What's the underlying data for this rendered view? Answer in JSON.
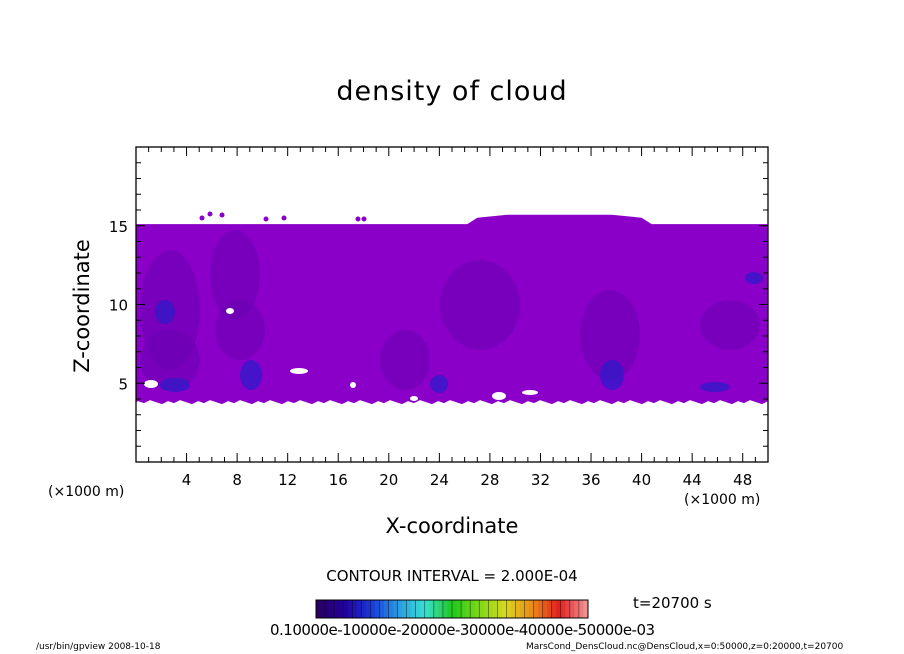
{
  "chart_data": {
    "type": "heatmap",
    "title": "density of cloud",
    "xlabel": "X-coordinate",
    "ylabel": "Z-coordinate",
    "x_unit": "(×1000 m)",
    "xlim": [
      0,
      50
    ],
    "ylim": [
      0,
      20
    ],
    "x_ticks": [
      "4",
      "8",
      "12",
      "16",
      "20",
      "24",
      "28",
      "32",
      "36",
      "40",
      "44",
      "48"
    ],
    "y_ticks": [
      "5",
      "10",
      "15"
    ],
    "field": {
      "x_range": [
        0,
        50
      ],
      "z_bottom": 3.8,
      "z_top": 15.1,
      "z_top_bump": {
        "x_range": [
          27,
          40
        ],
        "z": 15.7
      },
      "dominant_color": "#8b00c9",
      "low_density_color": "#6a00b0",
      "high_density_color": "#2d1ac8"
    },
    "contour_interval": "CONTOUR INTERVAL = 2.000E-04",
    "time_label": "t=20700 s",
    "colorbar": {
      "tick_labels_text": "0.10000e-10000e-20000e-30000e-40000e-50000e-03",
      "colors": [
        "#2a0060",
        "#22009e",
        "#1a3ad8",
        "#2a9be0",
        "#3ae0d0",
        "#1ec81e",
        "#7ed818",
        "#d8d820",
        "#e88a18",
        "#e02020",
        "#f09090"
      ]
    }
  },
  "footer": {
    "left": "/usr/bin/gpview   2008-10-18",
    "right": "MarsCond_DensCloud.nc@DensCloud,x=0:50000,z=0:20000,t=20700"
  }
}
